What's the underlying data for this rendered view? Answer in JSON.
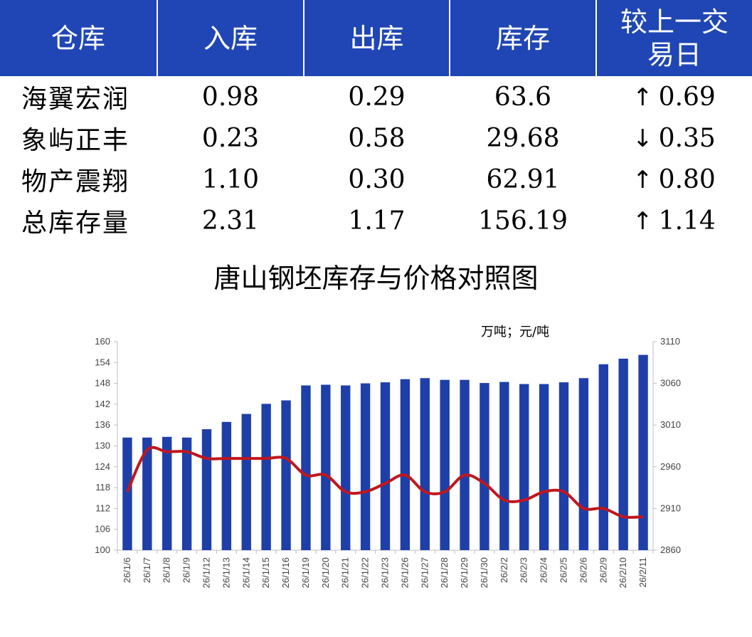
{
  "table": {
    "headers": [
      "仓库",
      "入库",
      "出库",
      "库存",
      "较上一交易日"
    ],
    "rows": [
      {
        "name": "海翼宏润",
        "in": "0.98",
        "out": "0.29",
        "stock": "63.6",
        "dir": "up",
        "change": "0.69"
      },
      {
        "name": "象屿正丰",
        "in": "0.23",
        "out": "0.58",
        "stock": "29.68",
        "dir": "down",
        "change": "0.35"
      },
      {
        "name": "物产震翔",
        "in": "1.10",
        "out": "0.30",
        "stock": "62.91",
        "dir": "up",
        "change": "0.80"
      },
      {
        "name": "总库存量",
        "in": "2.31",
        "out": "1.17",
        "stock": "156.19",
        "dir": "up",
        "change": "1.14"
      }
    ],
    "arrows": {
      "up": "↑",
      "down": "↓"
    },
    "colors": {
      "header_bg": "#1f46b4",
      "up": "#e60000",
      "down": "#1a7a1a"
    }
  },
  "chart_data": {
    "type": "bar+line",
    "title": "唐山钢坯库存与价格对照图",
    "unit_label": "万吨；元/吨",
    "categories": [
      "26/1/6",
      "26/1/7",
      "26/1/8",
      "26/1/9",
      "26/1/12",
      "26/1/13",
      "26/1/14",
      "26/1/15",
      "26/1/16",
      "26/1/19",
      "26/1/20",
      "26/1/21",
      "26/1/22",
      "26/1/23",
      "26/1/26",
      "26/1/27",
      "26/1/28",
      "26/1/29",
      "26/1/30",
      "26/2/2",
      "26/2/3",
      "26/2/4",
      "26/2/5",
      "26/2/6",
      "26/2/9",
      "26/2/10",
      "26/2/11"
    ],
    "series": [
      {
        "type": "bar",
        "axis": "left",
        "color": "#1f3fa8",
        "values": [
          132.4,
          132.4,
          132.6,
          132.4,
          134.8,
          136.9,
          139.2,
          142.1,
          143.1,
          147.4,
          147.6,
          147.4,
          148,
          148.3,
          149.2,
          149.5,
          149,
          149,
          148.1,
          148.4,
          147.8,
          147.8,
          148.3,
          149.5,
          153.5,
          155.1,
          156.19
        ]
      },
      {
        "type": "line",
        "axis": "right",
        "color": "#c0171c",
        "values": [
          2930,
          2980,
          2978,
          2978,
          2970,
          2970,
          2970,
          2970,
          2970,
          2950,
          2950,
          2930,
          2930,
          2940,
          2950,
          2930,
          2930,
          2950,
          2940,
          2920,
          2920,
          2930,
          2930,
          2910,
          2910,
          2900,
          2900
        ]
      }
    ],
    "y_left": {
      "min": 100,
      "max": 160,
      "ticks": [
        100,
        106,
        112,
        118,
        124,
        130,
        136,
        142,
        148,
        154,
        160
      ]
    },
    "y_right": {
      "min": 2860,
      "max": 3110,
      "ticks": [
        2860,
        2910,
        2960,
        3010,
        3060,
        3110
      ]
    },
    "grid": false,
    "legend": "none"
  }
}
